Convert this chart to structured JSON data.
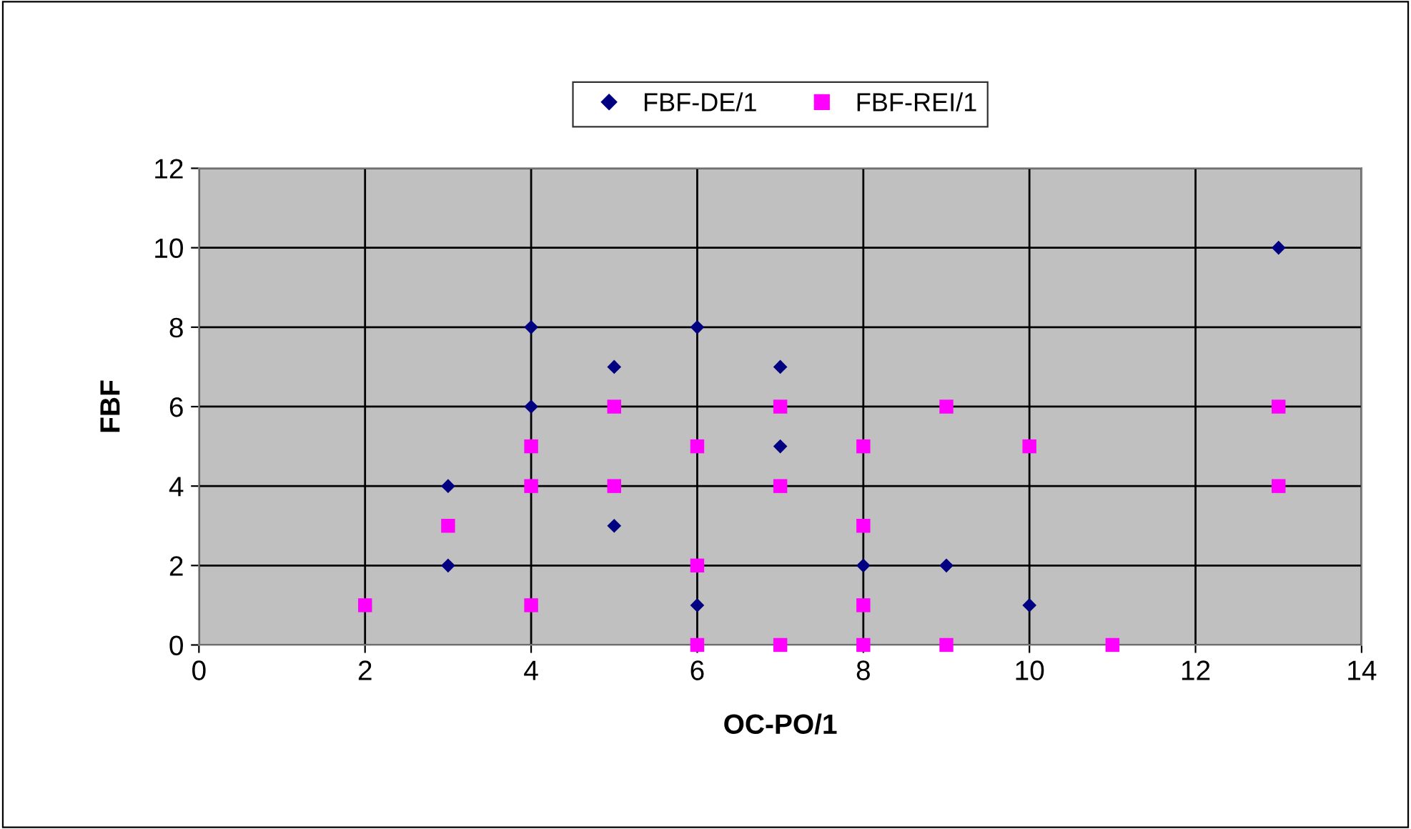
{
  "chart_data": {
    "type": "scatter",
    "xlabel": "OC-PO/1",
    "ylabel": "FBF",
    "xlim": [
      0,
      14
    ],
    "ylim": [
      0,
      12
    ],
    "xticks": [
      0,
      2,
      4,
      6,
      8,
      10,
      12,
      14
    ],
    "yticks": [
      0,
      2,
      4,
      6,
      8,
      10,
      12
    ],
    "grid": true,
    "legend": "top",
    "series": [
      {
        "name": "FBF-DE/1",
        "color": "#000080",
        "marker": "diamond",
        "x": [
          3,
          3,
          4,
          4,
          5,
          5,
          6,
          6,
          7,
          7,
          8,
          9,
          10,
          13
        ],
        "values": [
          4,
          2,
          8,
          6,
          7,
          3,
          8,
          1,
          7,
          5,
          2,
          2,
          1,
          10
        ]
      },
      {
        "name": "FBF-REI/1",
        "color": "#ff00ff",
        "marker": "square",
        "x": [
          2,
          3,
          4,
          4,
          4,
          5,
          5,
          6,
          6,
          6,
          7,
          7,
          7,
          8,
          8,
          8,
          8,
          9,
          9,
          10,
          11,
          13,
          13
        ],
        "values": [
          1,
          3,
          5,
          4,
          1,
          6,
          4,
          5,
          2,
          0,
          6,
          4,
          0,
          5,
          3,
          1,
          0,
          6,
          0,
          5,
          0,
          6,
          4
        ]
      }
    ]
  }
}
